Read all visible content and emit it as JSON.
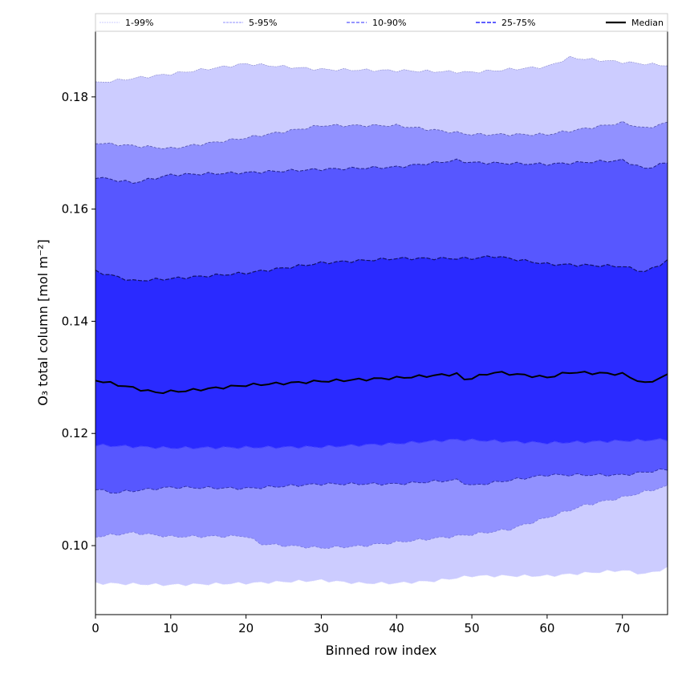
{
  "chart_data": {
    "type": "area",
    "title": "",
    "xlabel": "Binned row index",
    "ylabel": "O₃ total column [mol m⁻²]",
    "xlim": [
      0,
      76
    ],
    "ylim": [
      0.0877,
      0.1917
    ],
    "xticks": [
      0,
      10,
      20,
      30,
      40,
      50,
      60,
      70
    ],
    "yticks": [
      0.1,
      0.12,
      0.14,
      0.16,
      0.18
    ],
    "xtick_labels": [
      "0",
      "10",
      "20",
      "30",
      "40",
      "50",
      "60",
      "70"
    ],
    "ytick_labels": [
      "0.10",
      "0.12",
      "0.14",
      "0.16",
      "0.18"
    ],
    "legend_position": "top",
    "legend": [
      {
        "label": "1-99%",
        "color": "#ccccff"
      },
      {
        "label": "5-95%",
        "color": "#9191ff"
      },
      {
        "label": "10-90%",
        "color": "#5757ff"
      },
      {
        "label": "25-75%",
        "color": "#2a2aff"
      },
      {
        "label": "Median",
        "color": "#000000"
      }
    ],
    "percentiles": {
      "p1": {
        "x": [
          0,
          10,
          20,
          30,
          35,
          40,
          45,
          50,
          60,
          70,
          73,
          76
        ],
        "y": [
          0.0933,
          0.093,
          0.0933,
          0.0938,
          0.0933,
          0.0933,
          0.0937,
          0.0946,
          0.0946,
          0.0956,
          0.0949,
          0.096
        ]
      },
      "p5": {
        "x": [
          0,
          5,
          10,
          20,
          22,
          30,
          35,
          40,
          50,
          55,
          60,
          65,
          70,
          76
        ],
        "y": [
          0.1016,
          0.1023,
          0.1016,
          0.1017,
          0.1003,
          0.0996,
          0.0999,
          0.1006,
          0.102,
          0.1029,
          0.105,
          0.1072,
          0.1086,
          0.1106
        ]
      },
      "p10": {
        "x": [
          0,
          2,
          10,
          20,
          30,
          40,
          48,
          50,
          60,
          70,
          76
        ],
        "y": [
          0.1102,
          0.1094,
          0.1104,
          0.1102,
          0.111,
          0.111,
          0.1117,
          0.1107,
          0.1126,
          0.1126,
          0.1136
        ]
      },
      "p25": {
        "x": [
          0,
          10,
          20,
          30,
          40,
          48,
          60,
          76
        ],
        "y": [
          0.1179,
          0.1174,
          0.1175,
          0.1176,
          0.1182,
          0.1189,
          0.1183,
          0.1189
        ]
      },
      "median": {
        "x": [
          0,
          8,
          12,
          20,
          30,
          40,
          48,
          49,
          53,
          60,
          63,
          70,
          73,
          76
        ],
        "y": [
          0.1295,
          0.1273,
          0.1276,
          0.1286,
          0.1293,
          0.1299,
          0.1306,
          0.1296,
          0.1309,
          0.13,
          0.1309,
          0.1306,
          0.1289,
          0.1304
        ]
      },
      "p75": {
        "x": [
          0,
          5,
          10,
          20,
          30,
          40,
          50,
          53,
          60,
          70,
          73,
          76
        ],
        "y": [
          0.1489,
          0.1472,
          0.1476,
          0.1486,
          0.1504,
          0.1512,
          0.1512,
          0.1516,
          0.1502,
          0.1498,
          0.1488,
          0.1508
        ]
      },
      "p90": {
        "x": [
          0,
          5,
          10,
          20,
          30,
          40,
          48,
          50,
          60,
          70,
          73,
          76
        ],
        "y": [
          0.1657,
          0.1647,
          0.1661,
          0.1665,
          0.1671,
          0.1675,
          0.1687,
          0.1683,
          0.168,
          0.1687,
          0.1672,
          0.1683
        ]
      },
      "p95": {
        "x": [
          0,
          10,
          20,
          30,
          40,
          50,
          60,
          70,
          73,
          76
        ],
        "y": [
          0.1718,
          0.1708,
          0.1727,
          0.1749,
          0.1749,
          0.1733,
          0.1733,
          0.1754,
          0.1744,
          0.1754
        ]
      },
      "p99": {
        "x": [
          0,
          10,
          20,
          30,
          40,
          50,
          60,
          63,
          70,
          76
        ],
        "y": [
          0.1825,
          0.1841,
          0.1859,
          0.1849,
          0.1847,
          0.1844,
          0.1854,
          0.187,
          0.1862,
          0.1856
        ]
      }
    }
  }
}
